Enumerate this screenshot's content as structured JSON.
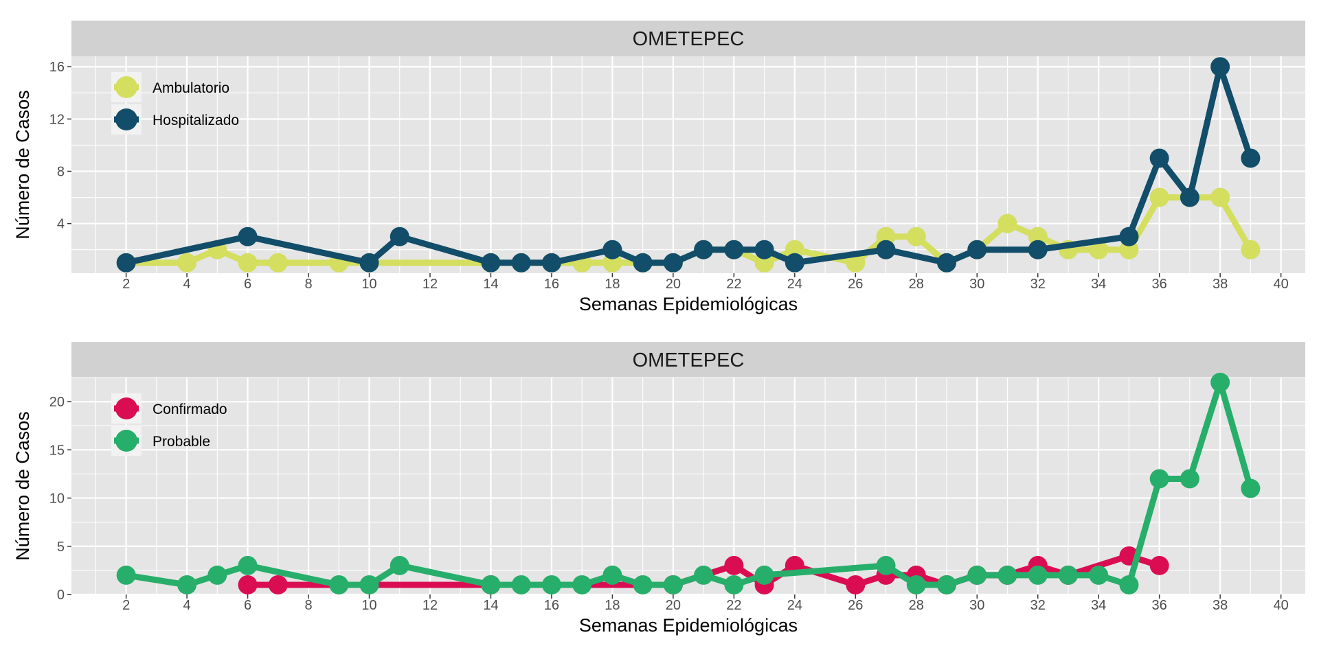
{
  "chart_data": [
    {
      "type": "line",
      "title": "OMETEPEC",
      "xlabel": "Semanas Epidemiológicas",
      "ylabel": "Número de Casos",
      "xlim": [
        0.2,
        40.8
      ],
      "ylim": [
        0.2,
        16.8
      ],
      "xticks": [
        2,
        4,
        6,
        8,
        10,
        12,
        14,
        16,
        18,
        20,
        22,
        24,
        26,
        28,
        30,
        32,
        34,
        36,
        38,
        40
      ],
      "yticks": [
        4,
        8,
        12,
        16
      ],
      "grid": true,
      "legend_position": "top-left",
      "series": [
        {
          "name": "Ambulatorio",
          "color": "#d4de5f",
          "points": [
            [
              2,
              1
            ],
            [
              4,
              1
            ],
            [
              5,
              2
            ],
            [
              6,
              1
            ],
            [
              7,
              1
            ],
            [
              9,
              1
            ],
            [
              10,
              1
            ],
            [
              14,
              1
            ],
            [
              15,
              1
            ],
            [
              16,
              1
            ],
            [
              17,
              1
            ],
            [
              18,
              1
            ],
            [
              19,
              1
            ],
            [
              20,
              1
            ],
            [
              21,
              2
            ],
            [
              22,
              2
            ],
            [
              23,
              1
            ],
            [
              24,
              2
            ],
            [
              26,
              1
            ],
            [
              27,
              3
            ],
            [
              28,
              3
            ],
            [
              29,
              1
            ],
            [
              30,
              2
            ],
            [
              31,
              4
            ],
            [
              32,
              3
            ],
            [
              33,
              2
            ],
            [
              34,
              2
            ],
            [
              35,
              2
            ],
            [
              36,
              6
            ],
            [
              37,
              6
            ],
            [
              38,
              6
            ],
            [
              39,
              2
            ]
          ]
        },
        {
          "name": "Hospitalizado",
          "color": "#124d69",
          "points": [
            [
              2,
              1
            ],
            [
              6,
              3
            ],
            [
              10,
              1
            ],
            [
              11,
              3
            ],
            [
              14,
              1
            ],
            [
              15,
              1
            ],
            [
              16,
              1
            ],
            [
              18,
              2
            ],
            [
              19,
              1
            ],
            [
              20,
              1
            ],
            [
              21,
              2
            ],
            [
              22,
              2
            ],
            [
              23,
              2
            ],
            [
              24,
              1
            ],
            [
              27,
              2
            ],
            [
              29,
              1
            ],
            [
              30,
              2
            ],
            [
              32,
              2
            ],
            [
              35,
              3
            ],
            [
              36,
              9
            ],
            [
              37,
              6
            ],
            [
              38,
              16
            ],
            [
              39,
              9
            ]
          ]
        }
      ]
    },
    {
      "type": "line",
      "title": "OMETEPEC",
      "xlabel": "Semanas Epidemiológicas",
      "ylabel": "Número de Casos",
      "xlim": [
        0.2,
        40.8
      ],
      "ylim": [
        0,
        22.5
      ],
      "xticks": [
        2,
        4,
        6,
        8,
        10,
        12,
        14,
        16,
        18,
        20,
        22,
        24,
        26,
        28,
        30,
        32,
        34,
        36,
        38,
        40
      ],
      "yticks": [
        0,
        5,
        10,
        15,
        20
      ],
      "grid": true,
      "legend_position": "top-left",
      "series": [
        {
          "name": "Confirmado",
          "color": "#da0d52",
          "points": [
            [
              6,
              1
            ],
            [
              7,
              1
            ],
            [
              14,
              1
            ],
            [
              20,
              1
            ],
            [
              22,
              3
            ],
            [
              23,
              1
            ],
            [
              24,
              3
            ],
            [
              26,
              1
            ],
            [
              27,
              2
            ],
            [
              28,
              2
            ],
            [
              29,
              1
            ],
            [
              30,
              2
            ],
            [
              31,
              2
            ],
            [
              32,
              3
            ],
            [
              33,
              2
            ],
            [
              35,
              4
            ],
            [
              36,
              3
            ]
          ]
        },
        {
          "name": "Probable",
          "color": "#27ae6a",
          "points": [
            [
              2,
              2
            ],
            [
              4,
              1
            ],
            [
              5,
              2
            ],
            [
              6,
              3
            ],
            [
              9,
              1
            ],
            [
              10,
              1
            ],
            [
              11,
              3
            ],
            [
              14,
              1
            ],
            [
              15,
              1
            ],
            [
              16,
              1
            ],
            [
              17,
              1
            ],
            [
              18,
              2
            ],
            [
              19,
              1
            ],
            [
              20,
              1
            ],
            [
              21,
              2
            ],
            [
              22,
              1
            ],
            [
              23,
              2
            ],
            [
              27,
              3
            ],
            [
              28,
              1
            ],
            [
              29,
              1
            ],
            [
              30,
              2
            ],
            [
              31,
              2
            ],
            [
              32,
              2
            ],
            [
              33,
              2
            ],
            [
              34,
              2
            ],
            [
              35,
              1
            ],
            [
              36,
              12
            ],
            [
              37,
              12
            ],
            [
              38,
              22
            ],
            [
              39,
              11
            ]
          ]
        }
      ]
    }
  ]
}
